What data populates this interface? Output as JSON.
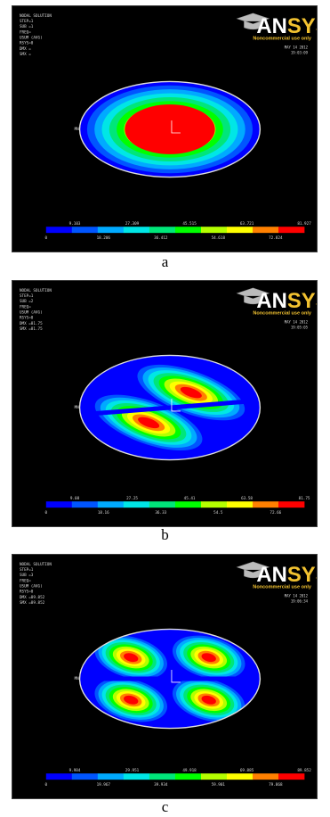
{
  "figures": [
    {
      "caption": "a",
      "info_lines": [
        "NODAL SOLUTION",
        "STEP=1",
        "SUB =1",
        "FREQ=",
        "USUM (AVG)",
        "RSYS=0",
        "DMX =",
        "SMX ="
      ],
      "date": "MAY 14 2012",
      "time": "19:03:09",
      "legend_ticks": [
        "0",
        "9.103",
        "18.206",
        "27.309",
        "36.412",
        "45.515",
        "54.618",
        "63.721",
        "72.824",
        "81.927"
      ],
      "node_label": "MN",
      "mode": "single"
    },
    {
      "caption": "b",
      "info_lines": [
        "NODAL SOLUTION",
        "STEP=1",
        "SUB =2",
        "FREQ=",
        "USUM (AVG)",
        "RSYS=0",
        "DMX =81.75",
        "SMX =81.75"
      ],
      "date": "MAY 14 2012",
      "time": "19:05:05",
      "legend_ticks": [
        "0",
        "9.08",
        "18.16",
        "27.25",
        "36.33",
        "45.41",
        "54.5",
        "63.58",
        "72.66",
        "81.75"
      ],
      "node_label": "MN",
      "mode": "two-lobe"
    },
    {
      "caption": "c",
      "info_lines": [
        "NODAL SOLUTION",
        "STEP=1",
        "SUB =3",
        "FREQ=",
        "USUM (AVG)",
        "RSYS=0",
        "DMX =89.852",
        "SMX =89.852"
      ],
      "date": "MAY 14 2012",
      "time": "19:06:34",
      "legend_ticks": [
        "0",
        "9.984",
        "19.967",
        "29.951",
        "39.934",
        "49.918",
        "59.901",
        "69.885",
        "79.868",
        "89.852"
      ],
      "node_label": "MN",
      "mode": "four-lobe"
    }
  ],
  "logo": {
    "text_a": "AN",
    "text_b": "SYS",
    "note": "Noncommercial use only"
  },
  "colors": {
    "contour_ramp": [
      "#0000ff",
      "#0055ff",
      "#00aaff",
      "#00e6e6",
      "#00e67a",
      "#00ff00",
      "#b4ff00",
      "#ffff00",
      "#ff8000",
      "#ff0000"
    ],
    "edge": "#dddddd",
    "background": "#000000"
  }
}
